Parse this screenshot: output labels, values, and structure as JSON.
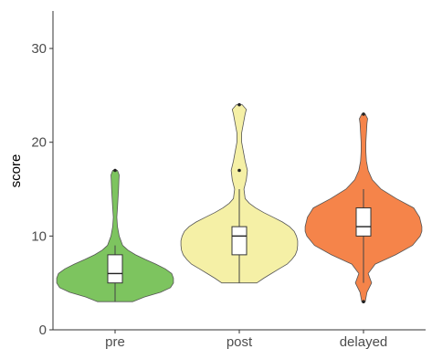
{
  "chart_data": {
    "type": "violin",
    "title": "",
    "xlabel": "",
    "ylabel": "score",
    "ylim": [
      0,
      34
    ],
    "yticks": [
      0,
      10,
      20,
      30
    ],
    "grid": false,
    "legend": "none",
    "categories": [
      "pre",
      "post",
      "delayed"
    ],
    "series": [
      {
        "category": "pre",
        "color": "#7dc45f",
        "min": 3,
        "q1": 5,
        "median": 6,
        "q3": 8,
        "max": 9,
        "outliers": [
          17
        ],
        "density": [
          [
            3,
            0.3
          ],
          [
            3.5,
            0.5
          ],
          [
            4,
            0.78
          ],
          [
            4.5,
            0.95
          ],
          [
            5,
            1.0
          ],
          [
            5.5,
            1.0
          ],
          [
            6,
            0.97
          ],
          [
            6.5,
            0.86
          ],
          [
            7,
            0.7
          ],
          [
            7.5,
            0.52
          ],
          [
            8,
            0.35
          ],
          [
            8.5,
            0.22
          ],
          [
            9,
            0.13
          ],
          [
            10,
            0.07
          ],
          [
            11,
            0.04
          ],
          [
            12,
            0.03
          ],
          [
            13,
            0.04
          ],
          [
            14,
            0.05
          ],
          [
            15,
            0.06
          ],
          [
            16,
            0.065
          ],
          [
            16.5,
            0.07
          ],
          [
            17,
            0.04
          ]
        ]
      },
      {
        "category": "post",
        "color": "#f5f0a6",
        "min": 5,
        "q1": 8,
        "median": 10,
        "q3": 11,
        "max": 15,
        "outliers": [
          17,
          24
        ],
        "density": [
          [
            5,
            0.3
          ],
          [
            5.5,
            0.42
          ],
          [
            6,
            0.55
          ],
          [
            6.5,
            0.68
          ],
          [
            7,
            0.82
          ],
          [
            7.5,
            0.9
          ],
          [
            8,
            0.96
          ],
          [
            8.5,
            0.99
          ],
          [
            9,
            1.0
          ],
          [
            9.5,
            1.0
          ],
          [
            10,
            0.98
          ],
          [
            10.5,
            0.94
          ],
          [
            11,
            0.86
          ],
          [
            11.5,
            0.74
          ],
          [
            12,
            0.58
          ],
          [
            12.5,
            0.42
          ],
          [
            13,
            0.28
          ],
          [
            13.5,
            0.17
          ],
          [
            14,
            0.1
          ],
          [
            15,
            0.08
          ],
          [
            16,
            0.12
          ],
          [
            17,
            0.14
          ],
          [
            18,
            0.1
          ],
          [
            19,
            0.07
          ],
          [
            20,
            0.04
          ],
          [
            21,
            0.04
          ],
          [
            22,
            0.07
          ],
          [
            23,
            0.1
          ],
          [
            23.5,
            0.12
          ],
          [
            24,
            0.05
          ]
        ]
      },
      {
        "category": "delayed",
        "color": "#f5844a",
        "min": 5,
        "q1": 10,
        "median": 11,
        "q3": 13,
        "max": 15,
        "outliers": [
          3,
          23
        ],
        "density": [
          [
            3,
            0.03
          ],
          [
            4,
            0.06
          ],
          [
            5,
            0.14
          ],
          [
            6,
            0.08
          ],
          [
            7,
            0.2
          ],
          [
            8,
            0.55
          ],
          [
            9,
            0.84
          ],
          [
            10,
            0.97
          ],
          [
            10.5,
            1.0
          ],
          [
            11,
            1.0
          ],
          [
            12,
            0.96
          ],
          [
            13,
            0.86
          ],
          [
            14,
            0.56
          ],
          [
            15,
            0.3
          ],
          [
            16,
            0.15
          ],
          [
            17,
            0.08
          ],
          [
            18,
            0.05
          ],
          [
            19,
            0.04
          ],
          [
            20,
            0.04
          ],
          [
            21,
            0.05
          ],
          [
            22,
            0.06
          ],
          [
            22.5,
            0.07
          ],
          [
            23,
            0.03
          ]
        ]
      }
    ]
  }
}
